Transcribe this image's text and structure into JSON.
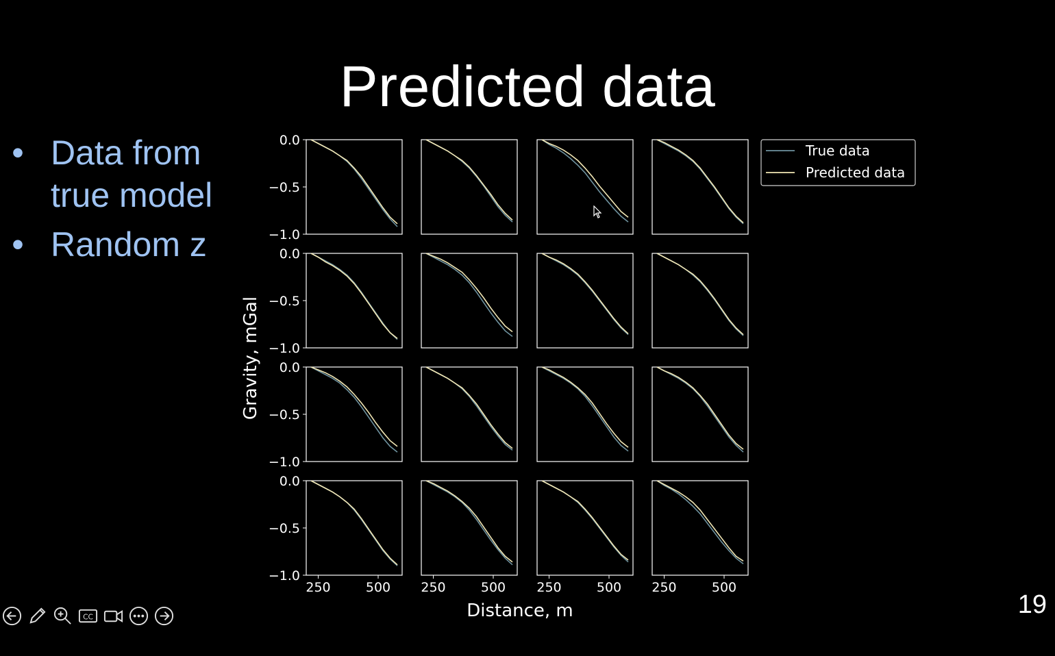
{
  "slide": {
    "title": "Predicted data",
    "bullets": [
      {
        "bullet": "•",
        "lines": [
          "Data from",
          "true model"
        ]
      },
      {
        "bullet": "•",
        "lines": [
          "Random z"
        ]
      }
    ],
    "page_number": "19"
  },
  "toolbar": {
    "buttons": [
      {
        "icon": "back-arrow-icon"
      },
      {
        "icon": "pen-icon"
      },
      {
        "icon": "zoom-icon"
      },
      {
        "icon": "captions-icon",
        "label": "CC"
      },
      {
        "icon": "camera-icon"
      },
      {
        "icon": "more-icon"
      },
      {
        "icon": "forward-arrow-icon"
      }
    ]
  },
  "colors": {
    "background": "#000000",
    "bullet_text": "#9fc3f2",
    "true_line": "#6f93a0",
    "predicted_line": "#f2e7b5",
    "axes": "#ffffff"
  },
  "chart_data": {
    "type": "line",
    "grid_rows": 4,
    "grid_cols": 4,
    "xlabel": "Distance, m",
    "ylabel": "Gravity, mGal",
    "xlim": [
      200,
      600
    ],
    "ylim": [
      -1.0,
      0.0
    ],
    "xticks": [
      250,
      500
    ],
    "yticks": [
      0.0,
      -0.5,
      -1.0
    ],
    "xtick_labels": [
      "250",
      "500"
    ],
    "ytick_labels": [
      "0.0",
      "−0.5",
      "−1.0"
    ],
    "legend": {
      "placement": "right-top",
      "entries": [
        "True data",
        "Predicted data"
      ]
    },
    "x": [
      220,
      250,
      280,
      310,
      340,
      370,
      400,
      430,
      460,
      490,
      520,
      550,
      580
    ],
    "panels": [
      {
        "true": [
          0.0,
          -0.04,
          -0.08,
          -0.12,
          -0.17,
          -0.23,
          -0.31,
          -0.41,
          -0.52,
          -0.63,
          -0.74,
          -0.84,
          -0.92
        ],
        "predicted": [
          0.0,
          -0.04,
          -0.08,
          -0.12,
          -0.17,
          -0.22,
          -0.3,
          -0.39,
          -0.5,
          -0.61,
          -0.72,
          -0.82,
          -0.89
        ]
      },
      {
        "true": [
          0.0,
          -0.04,
          -0.08,
          -0.12,
          -0.17,
          -0.23,
          -0.3,
          -0.39,
          -0.49,
          -0.6,
          -0.71,
          -0.8,
          -0.87
        ],
        "predicted": [
          0.0,
          -0.04,
          -0.08,
          -0.12,
          -0.17,
          -0.22,
          -0.29,
          -0.38,
          -0.48,
          -0.58,
          -0.69,
          -0.78,
          -0.85
        ]
      },
      {
        "true": [
          0.0,
          -0.05,
          -0.09,
          -0.14,
          -0.2,
          -0.27,
          -0.35,
          -0.45,
          -0.55,
          -0.64,
          -0.73,
          -0.81,
          -0.87
        ],
        "predicted": [
          0.0,
          -0.04,
          -0.07,
          -0.11,
          -0.16,
          -0.22,
          -0.3,
          -0.39,
          -0.49,
          -0.58,
          -0.67,
          -0.76,
          -0.82
        ]
      },
      {
        "true": [
          0.0,
          -0.04,
          -0.08,
          -0.12,
          -0.17,
          -0.23,
          -0.31,
          -0.41,
          -0.51,
          -0.62,
          -0.73,
          -0.82,
          -0.89
        ],
        "predicted": [
          0.0,
          -0.03,
          -0.07,
          -0.11,
          -0.16,
          -0.22,
          -0.3,
          -0.4,
          -0.5,
          -0.61,
          -0.72,
          -0.81,
          -0.88
        ]
      },
      {
        "true": [
          0.0,
          -0.04,
          -0.08,
          -0.12,
          -0.17,
          -0.23,
          -0.31,
          -0.41,
          -0.52,
          -0.63,
          -0.74,
          -0.84,
          -0.91
        ],
        "predicted": [
          0.0,
          -0.04,
          -0.09,
          -0.13,
          -0.18,
          -0.24,
          -0.32,
          -0.42,
          -0.53,
          -0.64,
          -0.75,
          -0.84,
          -0.9
        ]
      },
      {
        "true": [
          0.0,
          -0.04,
          -0.08,
          -0.12,
          -0.17,
          -0.23,
          -0.31,
          -0.41,
          -0.52,
          -0.63,
          -0.73,
          -0.82,
          -0.88
        ],
        "predicted": [
          0.0,
          -0.03,
          -0.06,
          -0.1,
          -0.15,
          -0.2,
          -0.28,
          -0.37,
          -0.47,
          -0.58,
          -0.68,
          -0.77,
          -0.83
        ]
      },
      {
        "true": [
          0.0,
          -0.04,
          -0.08,
          -0.12,
          -0.17,
          -0.23,
          -0.31,
          -0.4,
          -0.5,
          -0.6,
          -0.7,
          -0.79,
          -0.86
        ],
        "predicted": [
          0.0,
          -0.04,
          -0.07,
          -0.11,
          -0.16,
          -0.22,
          -0.3,
          -0.39,
          -0.49,
          -0.59,
          -0.69,
          -0.78,
          -0.85
        ]
      },
      {
        "true": [
          0.0,
          -0.04,
          -0.08,
          -0.12,
          -0.17,
          -0.23,
          -0.3,
          -0.39,
          -0.49,
          -0.6,
          -0.71,
          -0.8,
          -0.87
        ],
        "predicted": [
          0.0,
          -0.04,
          -0.08,
          -0.12,
          -0.17,
          -0.22,
          -0.29,
          -0.38,
          -0.48,
          -0.59,
          -0.7,
          -0.79,
          -0.86
        ]
      },
      {
        "true": [
          0.0,
          -0.04,
          -0.08,
          -0.12,
          -0.17,
          -0.24,
          -0.32,
          -0.42,
          -0.53,
          -0.64,
          -0.75,
          -0.84,
          -0.9
        ],
        "predicted": [
          0.0,
          -0.03,
          -0.06,
          -0.1,
          -0.15,
          -0.21,
          -0.29,
          -0.38,
          -0.48,
          -0.59,
          -0.69,
          -0.78,
          -0.84
        ]
      },
      {
        "true": [
          0.0,
          -0.04,
          -0.08,
          -0.12,
          -0.17,
          -0.23,
          -0.31,
          -0.41,
          -0.52,
          -0.63,
          -0.73,
          -0.82,
          -0.88
        ],
        "predicted": [
          0.0,
          -0.04,
          -0.08,
          -0.12,
          -0.17,
          -0.22,
          -0.3,
          -0.39,
          -0.5,
          -0.61,
          -0.71,
          -0.8,
          -0.86
        ]
      },
      {
        "true": [
          0.0,
          -0.04,
          -0.08,
          -0.12,
          -0.17,
          -0.23,
          -0.31,
          -0.41,
          -0.52,
          -0.63,
          -0.74,
          -0.83,
          -0.89
        ],
        "predicted": [
          0.0,
          -0.03,
          -0.07,
          -0.11,
          -0.16,
          -0.22,
          -0.29,
          -0.38,
          -0.49,
          -0.6,
          -0.7,
          -0.79,
          -0.85
        ]
      },
      {
        "true": [
          0.0,
          -0.04,
          -0.08,
          -0.12,
          -0.17,
          -0.23,
          -0.31,
          -0.41,
          -0.52,
          -0.63,
          -0.74,
          -0.83,
          -0.9
        ],
        "predicted": [
          0.0,
          -0.04,
          -0.07,
          -0.11,
          -0.16,
          -0.22,
          -0.3,
          -0.39,
          -0.5,
          -0.61,
          -0.72,
          -0.81,
          -0.87
        ]
      },
      {
        "true": [
          0.0,
          -0.04,
          -0.08,
          -0.12,
          -0.17,
          -0.23,
          -0.31,
          -0.41,
          -0.52,
          -0.63,
          -0.74,
          -0.83,
          -0.9
        ],
        "predicted": [
          0.0,
          -0.04,
          -0.08,
          -0.12,
          -0.17,
          -0.23,
          -0.3,
          -0.4,
          -0.51,
          -0.62,
          -0.73,
          -0.82,
          -0.89
        ]
      },
      {
        "true": [
          0.0,
          -0.04,
          -0.08,
          -0.12,
          -0.17,
          -0.23,
          -0.31,
          -0.41,
          -0.52,
          -0.63,
          -0.73,
          -0.82,
          -0.89
        ],
        "predicted": [
          0.0,
          -0.03,
          -0.07,
          -0.11,
          -0.16,
          -0.22,
          -0.29,
          -0.38,
          -0.49,
          -0.6,
          -0.71,
          -0.8,
          -0.86
        ]
      },
      {
        "true": [
          0.0,
          -0.04,
          -0.08,
          -0.12,
          -0.17,
          -0.23,
          -0.31,
          -0.4,
          -0.5,
          -0.6,
          -0.7,
          -0.79,
          -0.86
        ],
        "predicted": [
          0.0,
          -0.04,
          -0.08,
          -0.12,
          -0.17,
          -0.22,
          -0.3,
          -0.39,
          -0.49,
          -0.59,
          -0.69,
          -0.78,
          -0.84
        ]
      },
      {
        "true": [
          0.0,
          -0.05,
          -0.09,
          -0.14,
          -0.2,
          -0.27,
          -0.35,
          -0.45,
          -0.55,
          -0.65,
          -0.74,
          -0.82,
          -0.88
        ],
        "predicted": [
          0.0,
          -0.04,
          -0.08,
          -0.12,
          -0.17,
          -0.23,
          -0.31,
          -0.41,
          -0.51,
          -0.61,
          -0.71,
          -0.8,
          -0.85
        ]
      }
    ]
  }
}
